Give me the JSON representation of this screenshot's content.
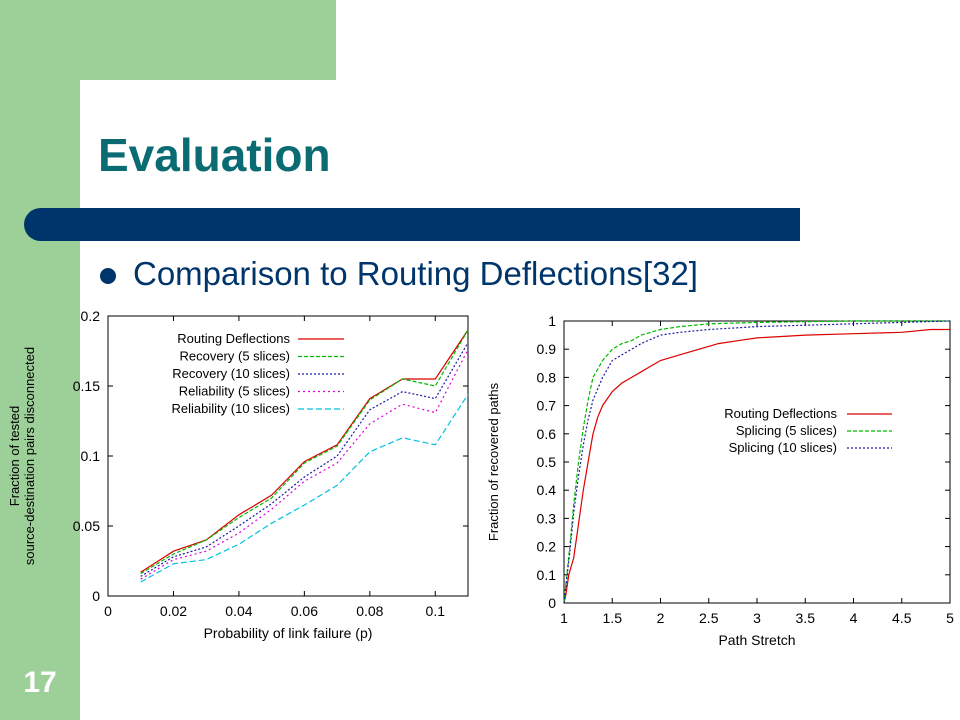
{
  "slide": {
    "title": "Evaluation",
    "bullet": "Comparison to Routing Deflections[32]",
    "slide_number": "17",
    "colors": {
      "green": "#9dcf99",
      "navy": "#00356b",
      "title": "#0b6b73"
    }
  },
  "chart_data": [
    {
      "type": "line",
      "xlabel": "Probability of link failure (p)",
      "ylabel": "Fraction of tested source-destination pairs disconnected",
      "xlim": [
        0,
        0.11
      ],
      "ylim": [
        0,
        0.2
      ],
      "xticks": [
        "0",
        "0.02",
        "0.04",
        "0.06",
        "0.08",
        "0.1"
      ],
      "yticks": [
        "0",
        "0.05",
        "0.1",
        "0.15",
        "0.2"
      ],
      "legend_position": "top-left",
      "x": [
        0.01,
        0.02,
        0.03,
        0.04,
        0.05,
        0.06,
        0.07,
        0.08,
        0.09,
        0.1,
        0.11
      ],
      "series": [
        {
          "name": "Routing Deflections",
          "color": "#dd0000",
          "dash": "",
          "values": [
            0.017,
            0.032,
            0.04,
            0.058,
            0.072,
            0.096,
            0.108,
            0.141,
            0.155,
            0.155,
            0.19
          ]
        },
        {
          "name": "Recovery (5 slices)",
          "color": "#00bb00",
          "dash": "4,2",
          "values": [
            0.016,
            0.03,
            0.04,
            0.056,
            0.07,
            0.095,
            0.107,
            0.14,
            0.155,
            0.15,
            0.19
          ]
        },
        {
          "name": "Recovery (10 slices)",
          "color": "#1a1aa6",
          "dash": "2,2",
          "values": [
            0.014,
            0.028,
            0.035,
            0.05,
            0.066,
            0.085,
            0.1,
            0.133,
            0.146,
            0.141,
            0.181
          ]
        },
        {
          "name": "Reliability (5 slices)",
          "color": "#dd00dd",
          "dash": "2,3",
          "values": [
            0.012,
            0.026,
            0.032,
            0.045,
            0.062,
            0.082,
            0.095,
            0.123,
            0.137,
            0.131,
            0.176
          ]
        },
        {
          "name": "Reliability (10 slices)",
          "color": "#00c0e0",
          "dash": "6,3",
          "values": [
            0.01,
            0.023,
            0.026,
            0.037,
            0.052,
            0.065,
            0.079,
            0.103,
            0.113,
            0.108,
            0.144
          ]
        }
      ]
    },
    {
      "type": "line",
      "xlabel": "Path Stretch",
      "ylabel": "Fraction of recovered paths",
      "xlim": [
        1,
        5
      ],
      "ylim": [
        0,
        1
      ],
      "xticks": [
        "1",
        "1.5",
        "2",
        "2.5",
        "3",
        "3.5",
        "4",
        "4.5",
        "5"
      ],
      "yticks": [
        "0",
        "0.1",
        "0.2",
        "0.3",
        "0.4",
        "0.5",
        "0.6",
        "0.7",
        "0.8",
        "0.9",
        "1"
      ],
      "legend_position": "center-right",
      "series": [
        {
          "name": "Routing Deflections",
          "color": "#dd0000",
          "dash": "",
          "x": [
            1,
            1.02,
            1.05,
            1.1,
            1.15,
            1.2,
            1.25,
            1.3,
            1.35,
            1.4,
            1.5,
            1.6,
            1.7,
            1.8,
            1.9,
            2.0,
            2.2,
            2.4,
            2.6,
            2.8,
            3.0,
            3.5,
            4.0,
            4.5,
            4.8,
            5.0
          ],
          "values": [
            0.0,
            0.03,
            0.1,
            0.16,
            0.28,
            0.4,
            0.5,
            0.6,
            0.66,
            0.7,
            0.75,
            0.78,
            0.8,
            0.82,
            0.84,
            0.86,
            0.88,
            0.9,
            0.92,
            0.93,
            0.94,
            0.95,
            0.955,
            0.96,
            0.97,
            0.97
          ]
        },
        {
          "name": "Splicing (5 slices)",
          "color": "#00bb00",
          "dash": "4,2",
          "x": [
            1,
            1.03,
            1.06,
            1.1,
            1.15,
            1.2,
            1.25,
            1.3,
            1.4,
            1.5,
            1.6,
            1.7,
            1.8,
            2.0,
            2.2,
            2.5,
            3.0,
            4.0,
            5.0
          ],
          "values": [
            0.0,
            0.1,
            0.2,
            0.35,
            0.5,
            0.62,
            0.72,
            0.8,
            0.86,
            0.9,
            0.92,
            0.93,
            0.95,
            0.97,
            0.98,
            0.99,
            0.995,
            1.0,
            1.0
          ]
        },
        {
          "name": "Splicing (10 slices)",
          "color": "#1a1aa6",
          "dash": "2,2",
          "x": [
            1,
            1.03,
            1.06,
            1.1,
            1.15,
            1.2,
            1.25,
            1.3,
            1.4,
            1.5,
            1.6,
            1.7,
            1.8,
            2.0,
            2.2,
            2.5,
            3.0,
            4.0,
            5.0
          ],
          "values": [
            0.0,
            0.09,
            0.18,
            0.32,
            0.45,
            0.56,
            0.65,
            0.72,
            0.8,
            0.86,
            0.88,
            0.9,
            0.92,
            0.95,
            0.96,
            0.97,
            0.98,
            0.99,
            1.0
          ]
        }
      ]
    }
  ]
}
